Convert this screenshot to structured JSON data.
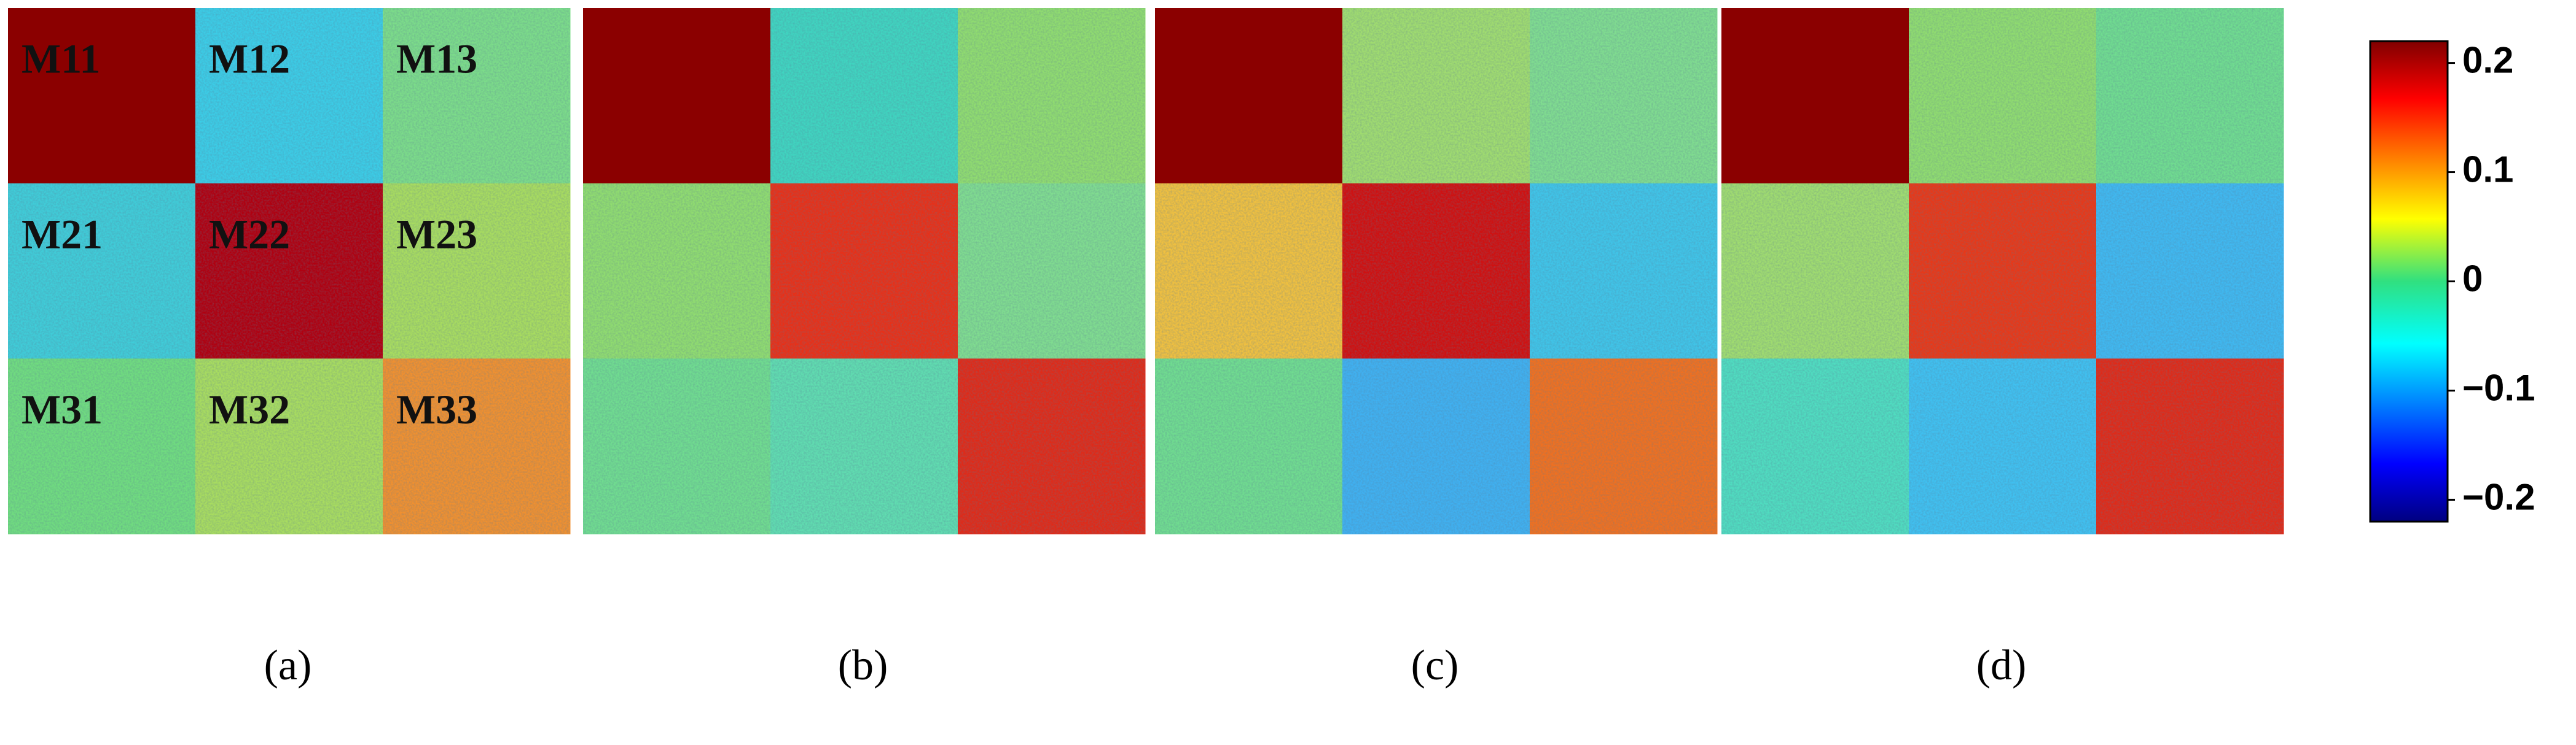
{
  "panels": [
    {
      "label": "(a)",
      "elements": [
        "M11",
        "M12",
        "M13",
        "M21",
        "M22",
        "M23",
        "M31",
        "M32",
        "M33"
      ]
    },
    {
      "label": "(b)"
    },
    {
      "label": "(c)"
    },
    {
      "label": "(d)"
    }
  ],
  "colorbar": {
    "lim": [
      -0.22,
      0.22
    ],
    "ticks": [
      0.2,
      0.1,
      0,
      {
        "value": -0.1,
        "label": "−0.1"
      },
      {
        "value": -0.2,
        "label": "−0.2"
      }
    ]
  }
}
